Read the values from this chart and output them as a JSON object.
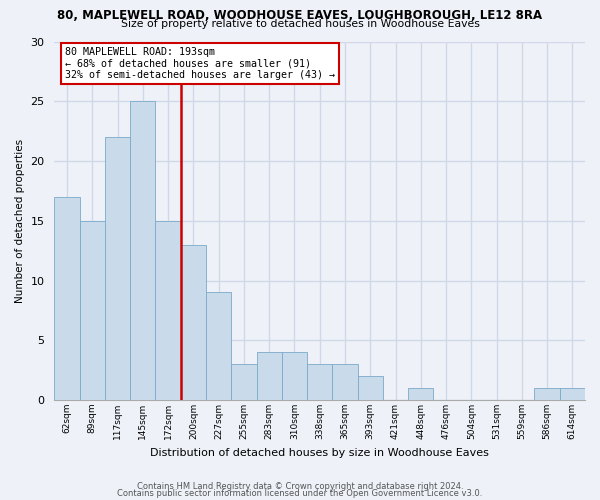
{
  "title1": "80, MAPLEWELL ROAD, WOODHOUSE EAVES, LOUGHBOROUGH, LE12 8RA",
  "title2": "Size of property relative to detached houses in Woodhouse Eaves",
  "xlabel": "Distribution of detached houses by size in Woodhouse Eaves",
  "ylabel": "Number of detached properties",
  "bar_labels": [
    "62sqm",
    "89sqm",
    "117sqm",
    "145sqm",
    "172sqm",
    "200sqm",
    "227sqm",
    "255sqm",
    "283sqm",
    "310sqm",
    "338sqm",
    "365sqm",
    "393sqm",
    "421sqm",
    "448sqm",
    "476sqm",
    "504sqm",
    "531sqm",
    "559sqm",
    "586sqm",
    "614sqm"
  ],
  "bar_values": [
    17,
    15,
    22,
    25,
    15,
    13,
    9,
    3,
    4,
    4,
    3,
    3,
    2,
    0,
    1,
    0,
    0,
    0,
    0,
    1,
    1
  ],
  "bar_color": "#c9daea",
  "bar_edge_color": "#7aaac8",
  "vline_index": 5,
  "vline_color": "#cc0000",
  "annotation_title": "80 MAPLEWELL ROAD: 193sqm",
  "annotation_line1": "← 68% of detached houses are smaller (91)",
  "annotation_line2": "32% of semi-detached houses are larger (43) →",
  "annotation_box_facecolor": "white",
  "annotation_box_edgecolor": "#cc0000",
  "ylim": [
    0,
    30
  ],
  "yticks": [
    0,
    5,
    10,
    15,
    20,
    25,
    30
  ],
  "footnote1": "Contains HM Land Registry data © Crown copyright and database right 2024.",
  "footnote2": "Contains public sector information licensed under the Open Government Licence v3.0.",
  "background_color": "#eef2f8",
  "grid_color": "#d0d8e8"
}
